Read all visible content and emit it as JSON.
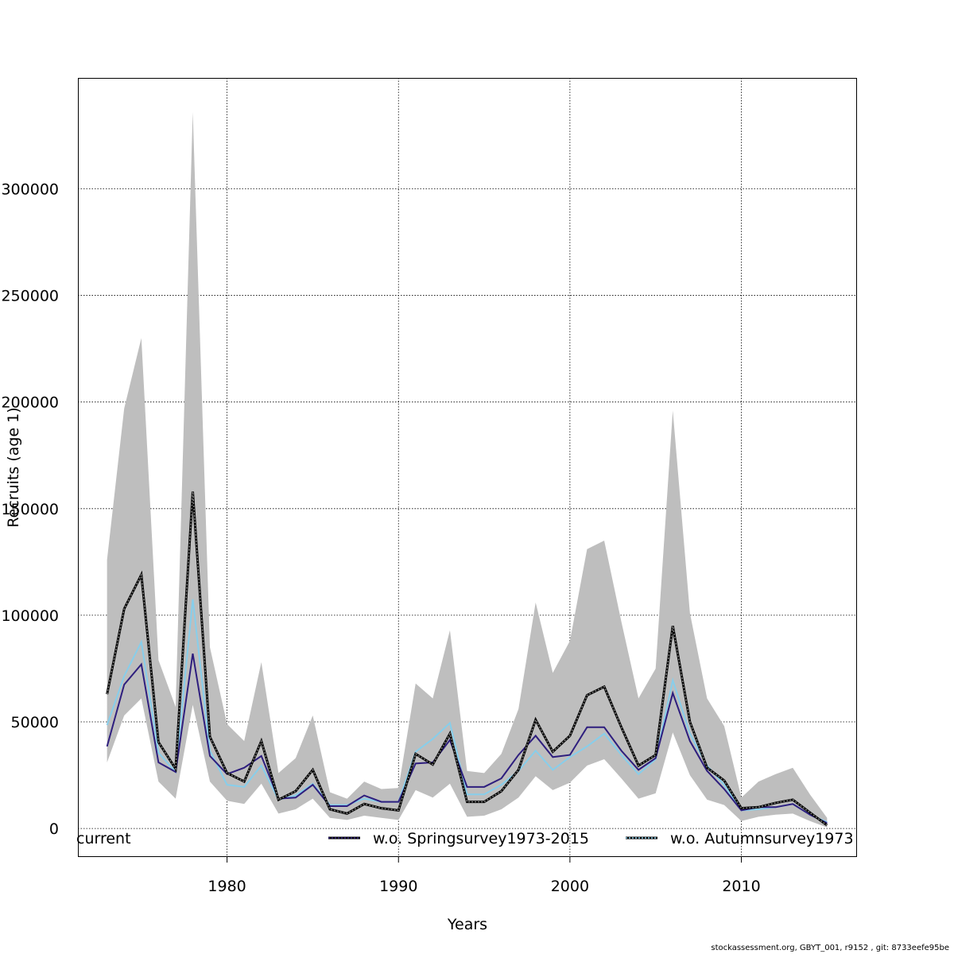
{
  "chart_data": {
    "type": "line",
    "xlabel": "Years",
    "ylabel": "Recruits (age 1)",
    "xlim": [
      1971.3,
      2016.7
    ],
    "ylim": [
      -13000,
      352000
    ],
    "xticks": [
      1980,
      1990,
      2000,
      2010
    ],
    "yticks": [
      0,
      50000,
      100000,
      150000,
      200000,
      250000,
      300000
    ],
    "ytick_labels": [
      "0",
      "50000",
      "100000",
      "150000",
      "200000",
      "250000",
      "300000"
    ],
    "grid": true,
    "legend_position": "bottom",
    "x": [
      1973,
      1974,
      1975,
      1976,
      1977,
      1978,
      1979,
      1980,
      1981,
      1982,
      1983,
      1984,
      1985,
      1986,
      1987,
      1988,
      1989,
      1990,
      1991,
      1992,
      1993,
      1994,
      1995,
      1996,
      1997,
      1998,
      1999,
      2000,
      2001,
      2002,
      2003,
      2004,
      2005,
      2006,
      2007,
      2008,
      2009,
      2010,
      2011,
      2012,
      2013,
      2014,
      2015
    ],
    "band": {
      "color": "#bebebe",
      "lower": [
        31000,
        53000,
        61000,
        22000,
        14000,
        58000,
        22000,
        13000,
        11500,
        21000,
        7000,
        9000,
        14000,
        5000,
        4000,
        6000,
        5000,
        4000,
        18000,
        14500,
        21000,
        5500,
        6000,
        9000,
        14500,
        24500,
        18000,
        21500,
        29500,
        32500,
        23500,
        14000,
        16500,
        45000,
        25000,
        13500,
        11000,
        3500,
        5500,
        6500,
        7000,
        3500,
        500
      ],
      "upper": [
        126000,
        197000,
        230000,
        79000,
        57000,
        336000,
        85000,
        49000,
        41000,
        78000,
        26000,
        33000,
        53000,
        17000,
        14000,
        22000,
        18500,
        19000,
        68000,
        61000,
        93000,
        27000,
        26000,
        35000,
        56000,
        106000,
        73000,
        88000,
        131000,
        135000,
        97000,
        61000,
        75000,
        196000,
        101000,
        61000,
        48000,
        14500,
        22000,
        25500,
        28500,
        16000,
        5000
      ]
    },
    "series": [
      {
        "name": "current",
        "color": "#000000",
        "values": [
          63000,
          103000,
          119000,
          40500,
          28000,
          158000,
          43000,
          26000,
          22000,
          41000,
          13500,
          17500,
          27500,
          9000,
          7000,
          11500,
          9500,
          8500,
          35000,
          30000,
          44500,
          12500,
          12500,
          17500,
          27500,
          51000,
          36000,
          43500,
          62500,
          66500,
          47500,
          29500,
          34500,
          95000,
          50000,
          28500,
          22500,
          9500,
          10000,
          12000,
          13500,
          7500,
          1500
        ],
        "style": "dashed-overlay"
      },
      {
        "name": "w.o. Springsurvey1973-2015",
        "color": "#2e1e7e",
        "values": [
          38500,
          67500,
          77000,
          31000,
          26500,
          82000,
          34000,
          25500,
          28500,
          34000,
          14000,
          14500,
          20500,
          10500,
          10500,
          15500,
          12500,
          12500,
          30500,
          31000,
          41500,
          19500,
          19500,
          23500,
          34500,
          43500,
          33500,
          34500,
          47500,
          47500,
          36500,
          27500,
          33000,
          63500,
          41000,
          27000,
          18500,
          8500,
          10000,
          10000,
          11500,
          6500,
          2500
        ],
        "style": "solid"
      },
      {
        "name": "w.o. Autumnsurvey1973",
        "color": "#87ceeb",
        "values": [
          48500,
          71500,
          87500,
          35500,
          26500,
          107500,
          36500,
          20500,
          19500,
          29500,
          13500,
          15500,
          21000,
          11000,
          11000,
          14000,
          12500,
          12500,
          36000,
          42000,
          49500,
          16000,
          16000,
          20500,
          27000,
          36500,
          27500,
          33500,
          38500,
          44500,
          34500,
          25500,
          32500,
          69500,
          44500,
          29500,
          20500,
          8500,
          9000,
          10000,
          11500,
          6500,
          3000
        ],
        "style": "solid"
      }
    ]
  },
  "footer_text": "stockassessment.org, GBYT_001, r9152 , git: 8733eefe95be"
}
